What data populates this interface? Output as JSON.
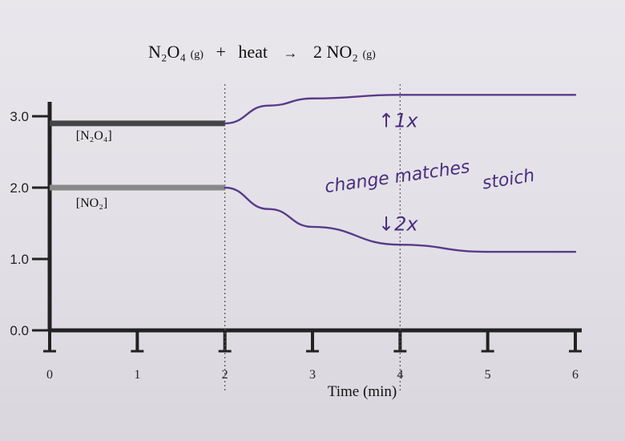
{
  "chart_data": {
    "type": "line",
    "title": "N2O4 (g) + heat → 2 NO2 (g)",
    "xlabel": "Time (min)",
    "ylabel": "",
    "xlim": [
      0,
      6
    ],
    "ylim": [
      0,
      3.0
    ],
    "x_ticks": [
      "0",
      "1",
      "2",
      "3",
      "4",
      "5",
      "6"
    ],
    "y_ticks": [
      "0.0",
      "1.0",
      "2.0",
      "3.0"
    ],
    "series": [
      {
        "name": "[N2O4]",
        "label": "[N₂O₄]",
        "color": "#444444",
        "points": [
          [
            0,
            2.9
          ],
          [
            2,
            2.9
          ]
        ]
      },
      {
        "name": "[NO2]",
        "label": "[NO₂]",
        "color": "#888888",
        "points": [
          [
            0,
            2.0
          ],
          [
            2,
            2.0
          ]
        ]
      },
      {
        "name": "N2O4 after disturbance",
        "color": "#5a3a8a",
        "points": [
          [
            2,
            2.9
          ],
          [
            2.5,
            3.15
          ],
          [
            3,
            3.25
          ],
          [
            4,
            3.3
          ],
          [
            5,
            3.3
          ],
          [
            6,
            3.3
          ]
        ]
      },
      {
        "name": "NO2 after disturbance",
        "color": "#5a3a8a",
        "points": [
          [
            2,
            2.0
          ],
          [
            2.5,
            1.7
          ],
          [
            3,
            1.45
          ],
          [
            4,
            1.2
          ],
          [
            5,
            1.1
          ],
          [
            6,
            1.1
          ]
        ]
      }
    ],
    "annotations": [
      {
        "text": "↑1x",
        "x": 3.8,
        "y": 2.85
      },
      {
        "text": "change matches",
        "x": 3.2,
        "y": 2.0
      },
      {
        "text": "stoich",
        "x": 4.9,
        "y": 2.0
      },
      {
        "text": "↓2x",
        "x": 3.8,
        "y": 1.45
      }
    ]
  },
  "reaction": {
    "reactant": "N₂O₄",
    "reactant_state": "(g)",
    "plus": "+",
    "heat": "heat",
    "arrow": "→",
    "product": "2 NO₂",
    "product_state": "(g)"
  }
}
